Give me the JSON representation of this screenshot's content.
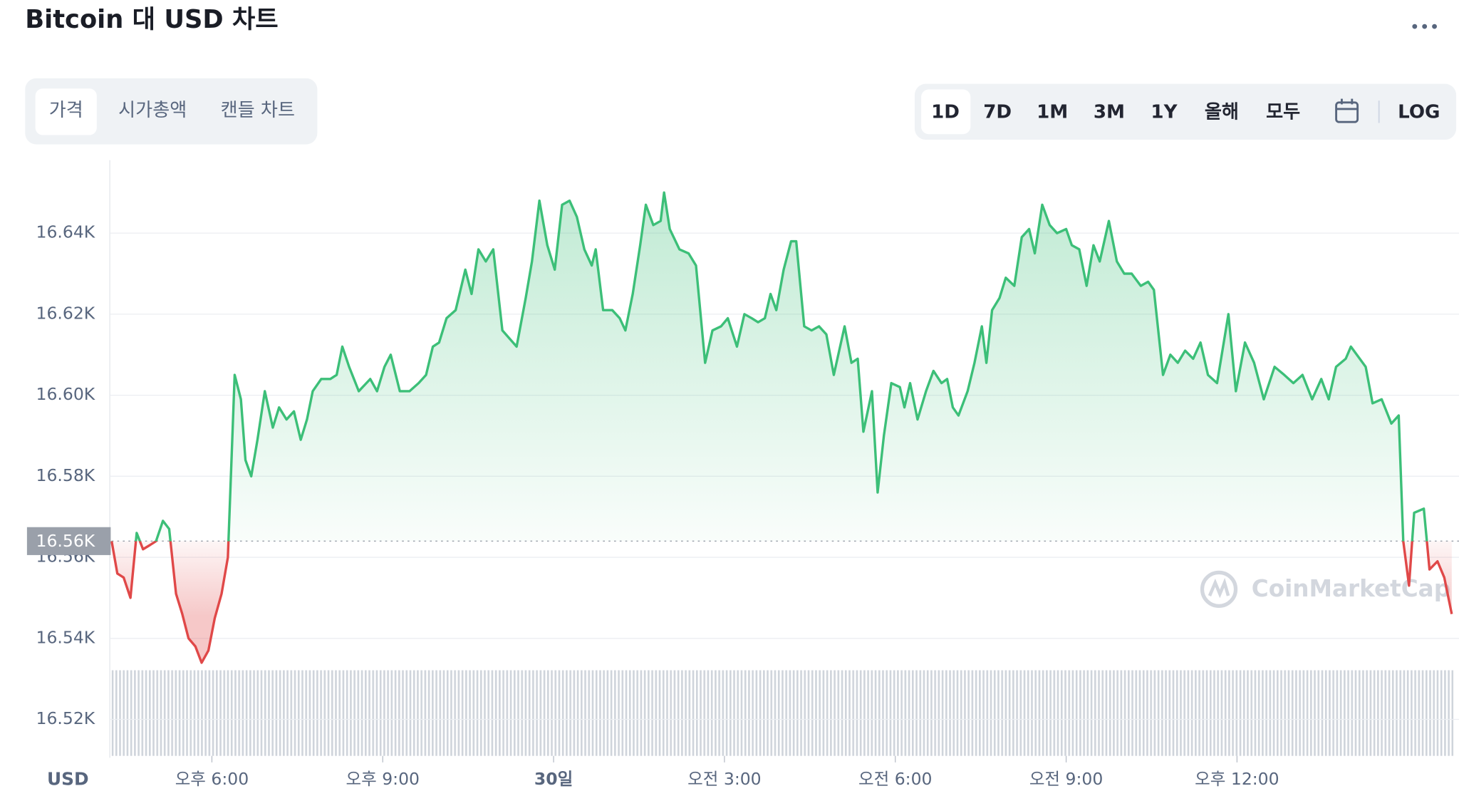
{
  "header": {
    "title": "Bitcoin 대 USD 차트",
    "menu": "•••"
  },
  "tabs": [
    "가격",
    "시가총액",
    "캔들 차트"
  ],
  "ranges": [
    "1D",
    "7D",
    "1M",
    "3M",
    "1Y",
    "올해",
    "모두"
  ],
  "log_button": "LOG",
  "chart_data": {
    "type": "line",
    "axis_label": "USD",
    "watermark": "CoinMarketCap",
    "up_color": "#3cbf78",
    "down_color": "#e04848",
    "baseline": {
      "value": 16564,
      "label": "16.56K"
    },
    "grid": true,
    "xlim": [
      -7.76,
      15.8
    ],
    "ylim": [
      16511,
      16658
    ],
    "yticks": [
      {
        "value": 16520,
        "label": "16.52K"
      },
      {
        "value": 16540,
        "label": "16.54K"
      },
      {
        "value": 16560,
        "label": "16.56K"
      },
      {
        "value": 16580,
        "label": "16.58K"
      },
      {
        "value": 16600,
        "label": "16.60K"
      },
      {
        "value": 16620,
        "label": "16.62K"
      },
      {
        "value": 16640,
        "label": "16.64K"
      }
    ],
    "xticks": [
      {
        "value": -6,
        "label": "오후 6:00"
      },
      {
        "value": -3,
        "label": "오후 9:00"
      },
      {
        "value": 0,
        "label": "30일"
      },
      {
        "value": 3,
        "label": "오전 3:00"
      },
      {
        "value": 6,
        "label": "오전 6:00"
      },
      {
        "value": 9,
        "label": "오전 9:00"
      },
      {
        "value": 12,
        "label": "오후 12:00"
      }
    ],
    "x": [
      -7.76,
      -7.66,
      -7.55,
      -7.43,
      -7.32,
      -7.21,
      -7.09,
      -6.98,
      -6.86,
      -6.75,
      -6.63,
      -6.52,
      -6.41,
      -6.29,
      -6.18,
      -6.06,
      -5.95,
      -5.83,
      -5.72,
      -5.6,
      -5.49,
      -5.41,
      -5.31,
      -5.2,
      -5.07,
      -4.93,
      -4.82,
      -4.69,
      -4.56,
      -4.44,
      -4.33,
      -4.23,
      -4.08,
      -3.92,
      -3.81,
      -3.71,
      -3.59,
      -3.42,
      -3.22,
      -3.1,
      -2.97,
      -2.86,
      -2.7,
      -2.53,
      -2.37,
      -2.24,
      -2.12,
      -2.01,
      -1.88,
      -1.72,
      -1.55,
      -1.44,
      -1.32,
      -1.19,
      -1.06,
      -0.9,
      -0.65,
      -0.49,
      -0.38,
      -0.25,
      -0.11,
      0.02,
      0.15,
      0.28,
      0.41,
      0.54,
      0.67,
      0.74,
      0.87,
      1.03,
      1.16,
      1.26,
      1.39,
      1.52,
      1.62,
      1.75,
      1.88,
      1.94,
      2.04,
      2.21,
      2.37,
      2.5,
      2.66,
      2.79,
      2.94,
      3.06,
      3.22,
      3.35,
      3.48,
      3.59,
      3.71,
      3.81,
      3.91,
      4.04,
      4.17,
      4.26,
      4.4,
      4.53,
      4.66,
      4.79,
      4.92,
      5.11,
      5.23,
      5.34,
      5.44,
      5.59,
      5.69,
      5.8,
      5.93,
      6.08,
      6.16,
      6.26,
      6.39,
      6.54,
      6.67,
      6.81,
      6.91,
      7.01,
      7.11,
      7.27,
      7.39,
      7.52,
      7.6,
      7.7,
      7.83,
      7.94,
      8.09,
      8.22,
      8.35,
      8.45,
      8.58,
      8.71,
      8.84,
      9.0,
      9.1,
      9.23,
      9.36,
      9.48,
      9.59,
      9.75,
      9.89,
      10.02,
      10.15,
      10.31,
      10.44,
      10.54,
      10.7,
      10.83,
      10.96,
      11.09,
      11.23,
      11.36,
      11.49,
      11.65,
      11.85,
      11.98,
      12.14,
      12.3,
      12.47,
      12.66,
      12.83,
      12.99,
      13.15,
      13.32,
      13.48,
      13.61,
      13.74,
      13.91,
      14.0,
      14.26,
      14.38,
      14.54,
      14.71,
      14.84,
      14.92,
      15.02,
      15.11,
      15.28,
      15.38,
      15.52,
      15.64,
      15.77
    ],
    "values": [
      16564,
      16556,
      16555,
      16550,
      16566,
      16562,
      16563,
      16564,
      16569,
      16567,
      16551,
      16546,
      16540,
      16538,
      16534,
      16537,
      16545,
      16551,
      16560,
      16605,
      16599,
      16584,
      16580,
      16589,
      16601,
      16592,
      16597,
      16594,
      16596,
      16589,
      16594,
      16601,
      16604,
      16604,
      16605,
      16612,
      16607,
      16601,
      16604,
      16601,
      16607,
      16610,
      16601,
      16601,
      16603,
      16605,
      16612,
      16613,
      16619,
      16621,
      16631,
      16625,
      16636,
      16633,
      16636,
      16616,
      16612,
      16624,
      16633,
      16648,
      16637,
      16631,
      16647,
      16648,
      16644,
      16636,
      16632,
      16636,
      16621,
      16621,
      16619,
      16616,
      16625,
      16637,
      16647,
      16642,
      16643,
      16650,
      16641,
      16636,
      16635,
      16632,
      16608,
      16616,
      16617,
      16619,
      16612,
      16620,
      16619,
      16618,
      16619,
      16625,
      16621,
      16631,
      16638,
      16638,
      16617,
      16616,
      16617,
      16615,
      16605,
      16617,
      16608,
      16609,
      16591,
      16601,
      16576,
      16590,
      16603,
      16602,
      16597,
      16603,
      16594,
      16601,
      16606,
      16603,
      16604,
      16597,
      16595,
      16601,
      16608,
      16617,
      16608,
      16621,
      16624,
      16629,
      16627,
      16639,
      16641,
      16635,
      16647,
      16642,
      16640,
      16641,
      16637,
      16636,
      16627,
      16637,
      16633,
      16643,
      16633,
      16630,
      16630,
      16627,
      16628,
      16626,
      16605,
      16610,
      16608,
      16611,
      16609,
      16613,
      16605,
      16603,
      16620,
      16601,
      16613,
      16608,
      16599,
      16607,
      16605,
      16603,
      16605,
      16599,
      16604,
      16599,
      16607,
      16609,
      16612,
      16607,
      16598,
      16599,
      16593,
      16595,
      16564,
      16553,
      16571,
      16572,
      16557,
      16559,
      16555,
      16546
    ]
  }
}
